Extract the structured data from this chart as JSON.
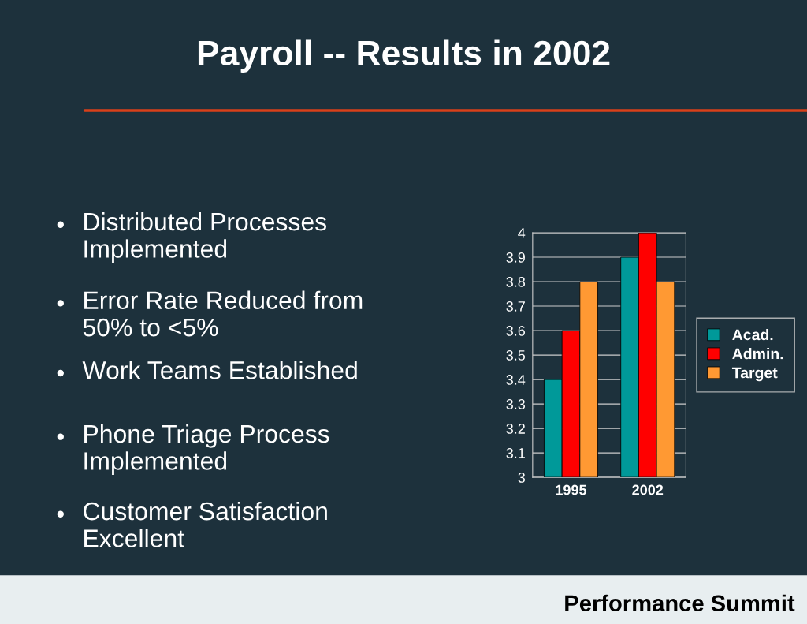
{
  "chart_data": {
    "type": "bar",
    "title": "Payroll -- Results in 2002",
    "categories": [
      "1995",
      "2002"
    ],
    "series": [
      {
        "name": "Acad.",
        "color": "#009999",
        "values": [
          3.4,
          3.9
        ]
      },
      {
        "name": "Admin.",
        "color": "#ff0000",
        "values": [
          3.6,
          4.0
        ]
      },
      {
        "name": "Target",
        "color": "#ff9933",
        "values": [
          3.8,
          3.8
        ]
      }
    ],
    "ylim": [
      3,
      4
    ],
    "yticks": [
      3,
      3.1,
      3.2,
      3.3,
      3.4,
      3.5,
      3.6,
      3.7,
      3.8,
      3.9,
      4
    ],
    "grid": "y",
    "legend": "right",
    "annotations": [
      "Distributed Processes\nImplemented",
      "Error Rate Reduced from\n50% to <5%",
      "Work Teams Established",
      "Phone Triage Process\nImplemented",
      "Customer Satisfaction\nExcellent",
      "Performance Summit"
    ]
  }
}
